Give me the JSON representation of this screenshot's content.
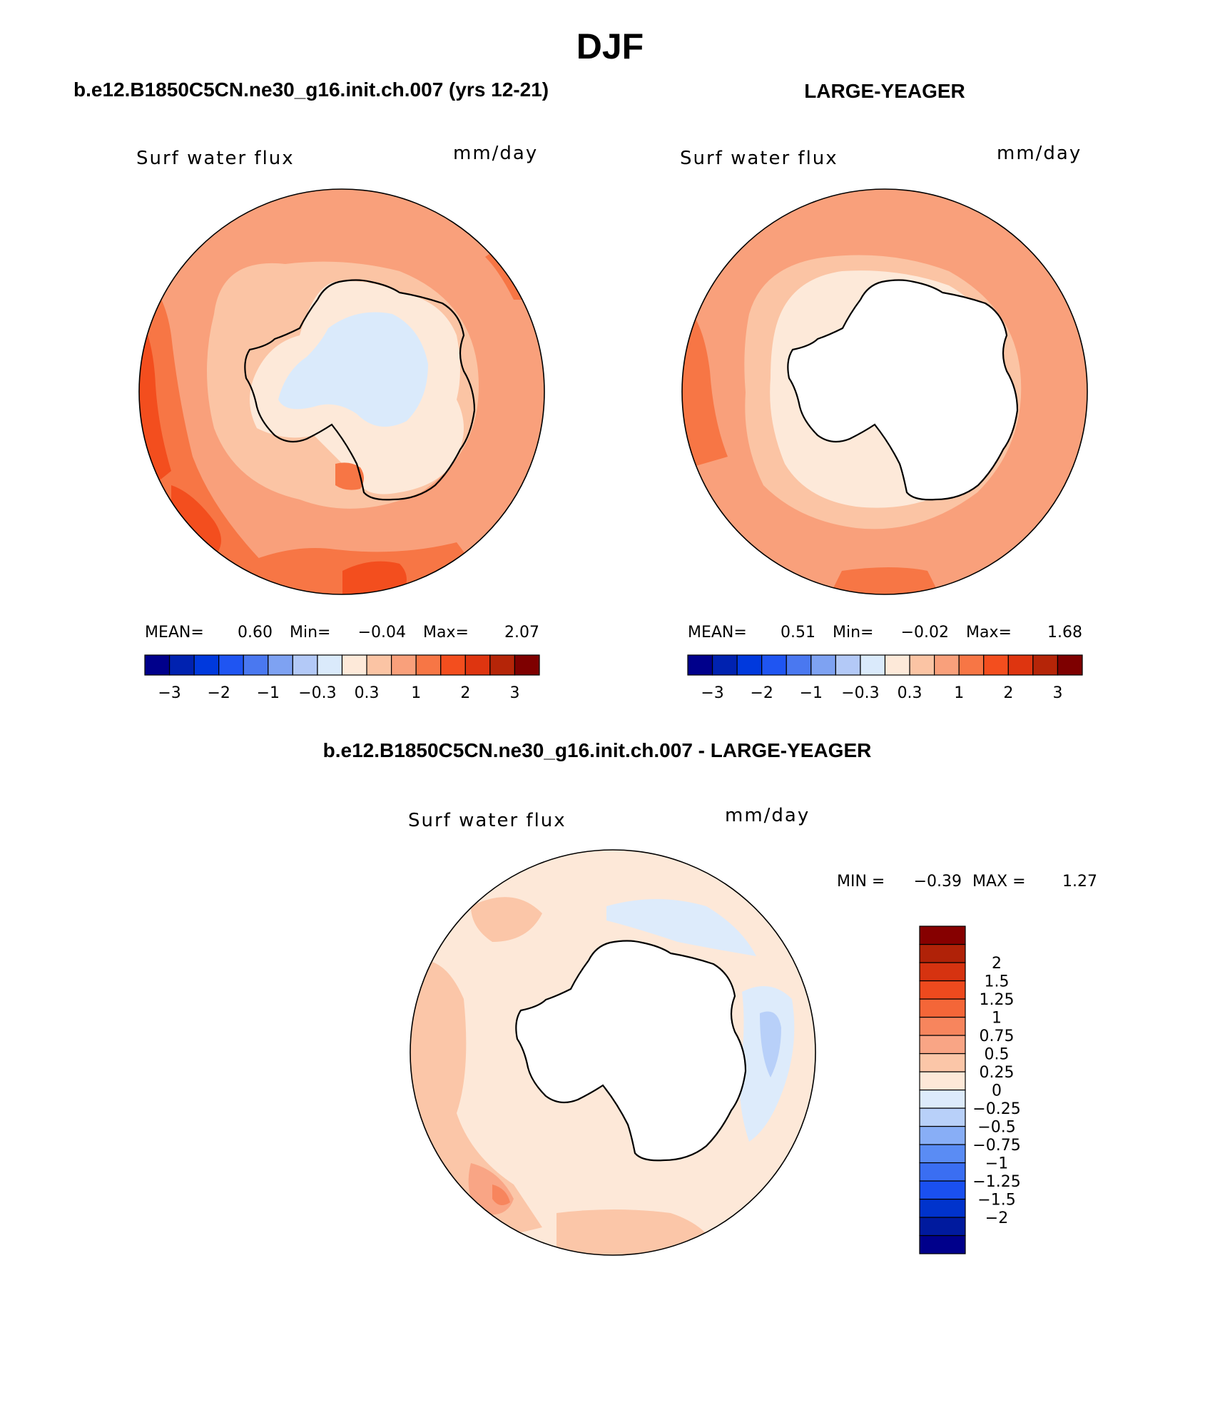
{
  "figure": {
    "season": "DJF",
    "colors": {
      "land": "#ffffff",
      "coast": "#000000"
    }
  },
  "chart_data": [
    {
      "type": "heatmap",
      "projection": "south-polar-stereographic",
      "title": "b.e12.B1850C5CN.ne30_g16.init.ch.007 (yrs 12-21)",
      "variable": "Surf water flux",
      "units": "mm/day",
      "stats": {
        "mean_label": "MEAN=",
        "mean": "0.60",
        "min_label": "Min=",
        "min": "−0.04",
        "max_label": "Max=",
        "max": "2.07"
      },
      "colorbar": {
        "orientation": "horizontal",
        "colors": [
          "#00008b",
          "#0022b0",
          "#0039dd",
          "#1f55f2",
          "#4a78f0",
          "#7ea2f2",
          "#b3c9f7",
          "#daeafb",
          "#fde9d9",
          "#fbc4a4",
          "#f9a07b",
          "#f77645",
          "#f34e1e",
          "#de3510",
          "#b52508",
          "#7e0000"
        ],
        "tick_labels": [
          "−3",
          "−2",
          "−1",
          "−0.3",
          "0.3",
          "1",
          "2",
          "3"
        ],
        "tick_boundaries": [
          1,
          2,
          3,
          4,
          5,
          6,
          7,
          8
        ]
      },
      "field_summary": {
        "ocean_background_class": 10,
        "antarctic_interior_class": 8,
        "ross_sea_region_class": 9,
        "western_sector_max_class": 12,
        "land_masked": false
      }
    },
    {
      "type": "heatmap",
      "projection": "south-polar-stereographic",
      "title": "LARGE-YEAGER",
      "variable": "Surf water flux",
      "units": "mm/day",
      "stats": {
        "mean_label": "MEAN=",
        "mean": "0.51",
        "min_label": "Min=",
        "min": "−0.02",
        "max_label": "Max=",
        "max": "1.68"
      },
      "colorbar": {
        "orientation": "horizontal",
        "colors": [
          "#00008b",
          "#0022b0",
          "#0039dd",
          "#1f55f2",
          "#4a78f0",
          "#7ea2f2",
          "#b3c9f7",
          "#daeafb",
          "#fde9d9",
          "#fbc4a4",
          "#f9a07b",
          "#f77645",
          "#f34e1e",
          "#de3510",
          "#b52508",
          "#7e0000"
        ],
        "tick_labels": [
          "−3",
          "−2",
          "−1",
          "−0.3",
          "0.3",
          "1",
          "2",
          "3"
        ],
        "tick_boundaries": [
          1,
          2,
          3,
          4,
          5,
          6,
          7,
          8
        ]
      },
      "field_summary": {
        "ocean_background_class": 10,
        "near_coast_class": 9,
        "western_sector_max_class": 11,
        "land_masked": true
      }
    },
    {
      "type": "heatmap",
      "projection": "south-polar-stereographic",
      "title": "b.e12.B1850C5CN.ne30_g16.init.ch.007 - LARGE-YEAGER",
      "variable": "Surf water flux",
      "units": "mm/day",
      "stats": {
        "min_label": "MIN =",
        "min": "−0.39",
        "max_label": "MAX =",
        "max": "1.27"
      },
      "colorbar": {
        "orientation": "vertical",
        "colors": [
          "#00008b",
          "#001a9e",
          "#0033cc",
          "#1a50f0",
          "#3a6ef2",
          "#5a8cf4",
          "#88aef6",
          "#b8d0f9",
          "#ddebfb",
          "#fde8d8",
          "#fbc6a8",
          "#f9a585",
          "#f7855d",
          "#f46638",
          "#ee4a1e",
          "#d63310",
          "#b02208",
          "#860000"
        ],
        "tick_labels": [
          "2",
          "1.5",
          "1.25",
          "1",
          "0.75",
          "0.5",
          "0.25",
          "0",
          "−0.25",
          "−0.5",
          "−0.75",
          "−1",
          "−1.25",
          "−1.5",
          "−2"
        ]
      },
      "field_summary": {
        "ocean_background_class": 9,
        "western_sector_class": 10,
        "eastern_sector_negative_class": 8,
        "land_masked": true
      }
    }
  ]
}
